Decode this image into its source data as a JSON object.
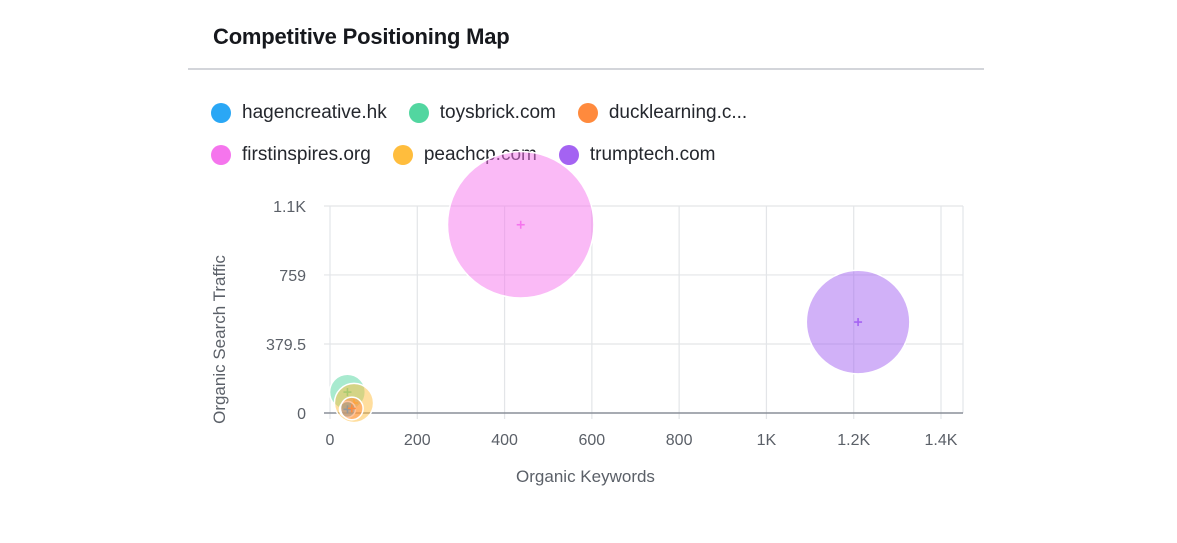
{
  "widget": {
    "title": "Competitive Positioning Map"
  },
  "chart_data": {
    "type": "scatter",
    "title": "Competitive Positioning Map",
    "xlabel": "Organic Keywords",
    "ylabel": "Organic Search Traffic",
    "xlim": [
      0,
      1450
    ],
    "ylim": [
      0,
      1138
    ],
    "x_ticks": [
      0,
      200,
      400,
      600,
      800,
      1000,
      1200,
      1400
    ],
    "x_tick_labels": [
      "0",
      "200",
      "400",
      "600",
      "800",
      "1K",
      "1.2K",
      "1.4K"
    ],
    "y_ticks": [
      0,
      379.5,
      759,
      1138
    ],
    "y_tick_labels": [
      "0",
      "379.5",
      "759",
      "1.1K"
    ],
    "grid": true,
    "legend_position": "top",
    "series": [
      {
        "name": "hagencreative.hk",
        "color": "#2aa7f5",
        "x": 40,
        "y": 20,
        "size": 0.5
      },
      {
        "name": "toysbrick.com",
        "color": "#52d6a0",
        "x": 40,
        "y": 115,
        "size": 2.5
      },
      {
        "name": "ducklearning.c...",
        "color": "#ff8a3d",
        "x": 50,
        "y": 25,
        "size": 1
      },
      {
        "name": "firstinspires.org",
        "color": "#f575ed",
        "x": 437,
        "y": 1035,
        "size": 42
      },
      {
        "name": "peachcp.com",
        "color": "#ffbd3d",
        "x": 55,
        "y": 55,
        "size": 3
      },
      {
        "name": "trumptech.com",
        "color": "#a463f2",
        "x": 1210,
        "y": 500,
        "size": 21
      }
    ]
  }
}
